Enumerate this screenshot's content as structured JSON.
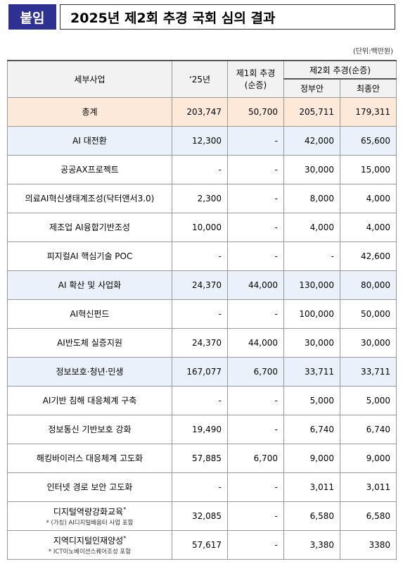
{
  "header": {
    "badge": "붙임",
    "title": "2025년 제2회 추경 국회 심의 결과"
  },
  "unit_label": "(단위:백만원)",
  "table": {
    "columns": {
      "item": "세부사업",
      "y25": "‘25년",
      "supp1": "제1회 추경\n(순증)",
      "supp2": "제2회 추경(순증)",
      "gov": "정부안",
      "final": "최종안"
    },
    "rows": [
      {
        "type": "total",
        "name": "총계",
        "y25": "203,747",
        "supp1": "50,700",
        "gov": "205,711",
        "final": "179,311"
      },
      {
        "type": "cat",
        "name": "AI 대전환",
        "y25": "12,300",
        "supp1": "-",
        "gov": "42,000",
        "final": "65,600"
      },
      {
        "type": "item",
        "name": "공공AX프로젝트",
        "y25": "-",
        "supp1": "-",
        "gov": "30,000",
        "final": "15,000"
      },
      {
        "type": "item",
        "name": "의료AI혁신생태계조성(닥터앤서3.0)",
        "y25": "2,300",
        "supp1": "-",
        "gov": "8,000",
        "final": "4,000"
      },
      {
        "type": "item",
        "name": "제조업 AI융합기반조성",
        "y25": "10,000",
        "supp1": "-",
        "gov": "4,000",
        "final": "4,000"
      },
      {
        "type": "item",
        "name": "피지컬AI 핵심기술 POC",
        "y25": "-",
        "supp1": "-",
        "gov": "-",
        "final": "42,600"
      },
      {
        "type": "cat",
        "name": "AI 확산 및 사업화",
        "y25": "24,370",
        "supp1": "44,000",
        "gov": "130,000",
        "final": "80,000"
      },
      {
        "type": "item",
        "name": "AI혁신펀드",
        "y25": "-",
        "supp1": "-",
        "gov": "100,000",
        "final": "50,000"
      },
      {
        "type": "item",
        "name": "AI반도체 실증지원",
        "y25": "24,370",
        "supp1": "44,000",
        "gov": "30,000",
        "final": "30,000"
      },
      {
        "type": "cat",
        "name": "정보보호·청년·민생",
        "y25": "167,077",
        "supp1": "6,700",
        "gov": "33,711",
        "final": "33,711"
      },
      {
        "type": "item",
        "name": "AI기반 침해 대응체계 구축",
        "y25": "-",
        "supp1": "-",
        "gov": "5,000",
        "final": "5,000"
      },
      {
        "type": "item",
        "name": "정보통신 기반보호 강화",
        "y25": "19,490",
        "supp1": "-",
        "gov": "6,740",
        "final": "6,740"
      },
      {
        "type": "item",
        "name": "해킹바이러스 대응체계 고도화",
        "y25": "57,885",
        "supp1": "6,700",
        "gov": "9,000",
        "final": "9,000"
      },
      {
        "type": "item",
        "name": "인터넷 경로 보안 고도화",
        "y25": "-",
        "supp1": "-",
        "gov": "3,011",
        "final": "3,011"
      },
      {
        "type": "item",
        "name": "디지털역량강화교육",
        "sup": "*",
        "note": "* (가칭) AI디지털배움터 사업 포함",
        "y25": "32,085",
        "supp1": "-",
        "gov": "6,580",
        "final": "6,580"
      },
      {
        "type": "item",
        "name": "지역디지털인재양성",
        "sup": "*",
        "note": "* ICT이노베이션스퀘어조성 포함",
        "y25": "57,617",
        "supp1": "-",
        "gov": "3,380",
        "final": "3380"
      }
    ]
  }
}
